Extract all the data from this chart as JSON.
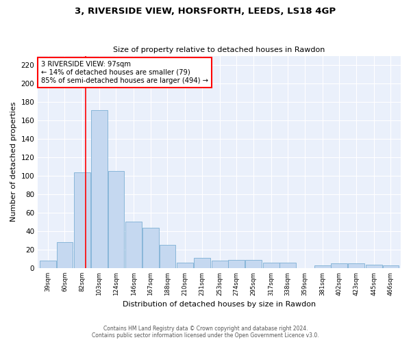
{
  "title1": "3, RIVERSIDE VIEW, HORSFORTH, LEEDS, LS18 4GP",
  "title2": "Size of property relative to detached houses in Rawdon",
  "xlabel": "Distribution of detached houses by size in Rawdon",
  "ylabel": "Number of detached properties",
  "bar_color": "#c5d8f0",
  "bar_edge_color": "#7bafd4",
  "bin_labels": [
    "39sqm",
    "60sqm",
    "82sqm",
    "103sqm",
    "124sqm",
    "146sqm",
    "167sqm",
    "188sqm",
    "210sqm",
    "231sqm",
    "253sqm",
    "274sqm",
    "295sqm",
    "317sqm",
    "338sqm",
    "359sqm",
    "381sqm",
    "402sqm",
    "423sqm",
    "445sqm",
    "466sqm"
  ],
  "bins_left": [
    39,
    60,
    82,
    103,
    124,
    146,
    167,
    188,
    210,
    231,
    253,
    274,
    295,
    317,
    338,
    359,
    381,
    402,
    423,
    445,
    466
  ],
  "values": [
    8,
    28,
    104,
    171,
    105,
    50,
    44,
    25,
    6,
    11,
    8,
    9,
    9,
    6,
    6,
    0,
    3,
    5,
    5,
    4,
    3
  ],
  "ylim": [
    0,
    230
  ],
  "yticks": [
    0,
    20,
    40,
    60,
    80,
    100,
    120,
    140,
    160,
    180,
    200,
    220
  ],
  "vline_x": 97,
  "annotation_title": "3 RIVERSIDE VIEW: 97sqm",
  "annotation_line1": "← 14% of detached houses are smaller (79)",
  "annotation_line2": "85% of semi-detached houses are larger (494) →",
  "footer1": "Contains HM Land Registry data © Crown copyright and database right 2024.",
  "footer2": "Contains public sector information licensed under the Open Government Licence v3.0.",
  "background_color": "#eaf0fb",
  "grid_color": "#ffffff"
}
